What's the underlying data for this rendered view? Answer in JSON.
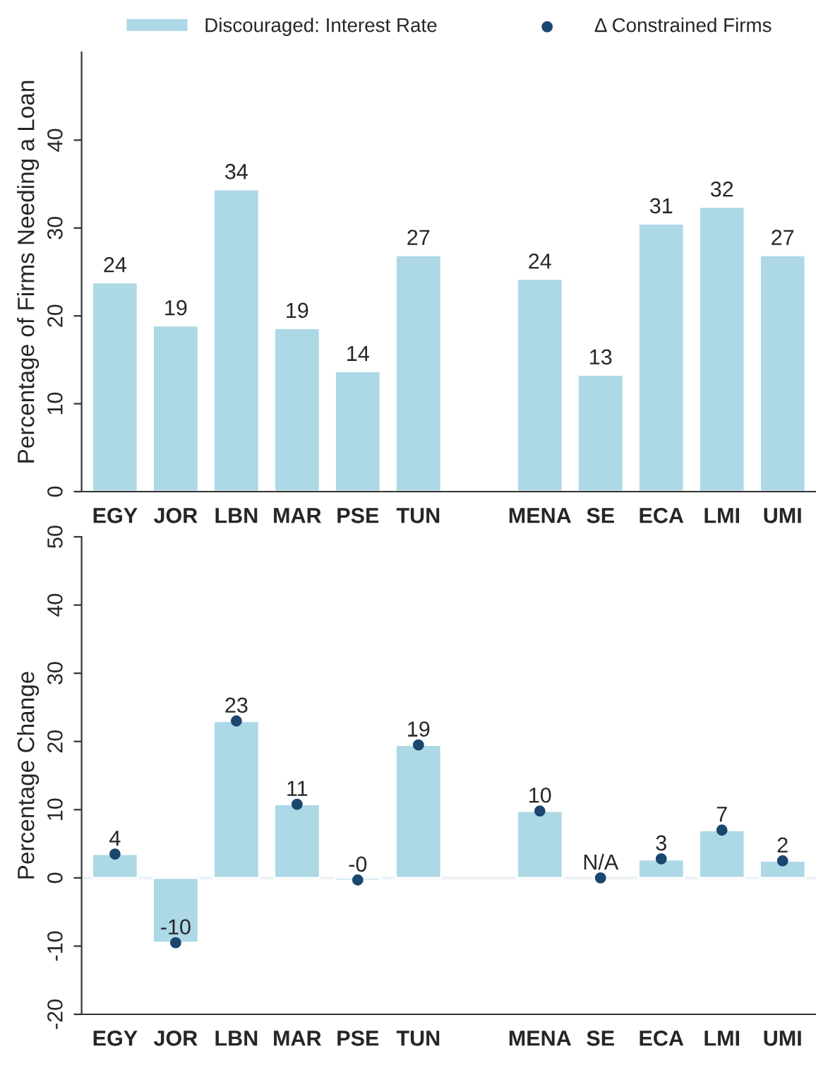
{
  "chart_data": [
    {
      "type": "bar",
      "ylabel": "Percentage of Firms Needing a Loan",
      "categories": [
        "EGY",
        "JOR",
        "LBN",
        "MAR",
        "PSE",
        "TUN",
        null,
        "MENA",
        "SE",
        "ECA",
        "LMI",
        "UMI"
      ],
      "series": [
        {
          "color": "#add8e6",
          "values": [
            23.8,
            18.9,
            34.4,
            18.6,
            13.7,
            26.9,
            null,
            24.2,
            13.3,
            30.5,
            32.4,
            26.9
          ],
          "value_labels": [
            "24",
            "19",
            "34",
            "19",
            "14",
            "27",
            null,
            "24",
            "13",
            "31",
            "32",
            "27"
          ]
        }
      ],
      "ylim": [
        0,
        50
      ],
      "yticks": [
        0,
        10,
        20,
        30,
        40
      ],
      "grid": false
    },
    {
      "type": "bar",
      "ylabel": "Percentage Change",
      "categories": [
        "EGY",
        "JOR",
        "LBN",
        "MAR",
        "PSE",
        "TUN",
        null,
        "MENA",
        "SE",
        "ECA",
        "LMI",
        "UMI"
      ],
      "series": [
        {
          "name": "Discouraged: Interest Rate",
          "color": "#add8e6",
          "values": [
            3.5,
            -9.5,
            23,
            10.8,
            -0.4,
            19.5,
            null,
            9.8,
            null,
            2.7,
            7,
            2.5
          ]
        },
        {
          "type": "scatter",
          "name": "Δ Constrained Firms",
          "color": "#1a476f",
          "marker": "circle",
          "values": [
            3.5,
            -9.5,
            23,
            10.8,
            -0.3,
            19.5,
            null,
            9.8,
            0,
            2.8,
            7,
            2.5
          ],
          "value_labels": [
            "4",
            "-10",
            "23",
            "11",
            "-0",
            "19",
            null,
            "10",
            "N/A",
            "3",
            "7",
            "2"
          ]
        }
      ],
      "ylim": [
        -20,
        50
      ],
      "yticks": [
        -20,
        -10,
        0,
        10,
        20,
        30,
        40,
        50
      ],
      "ref_lines": [
        {
          "axis": "y",
          "value": 0,
          "color": "#eef3f5"
        }
      ],
      "grid": false,
      "legend": "top"
    }
  ]
}
